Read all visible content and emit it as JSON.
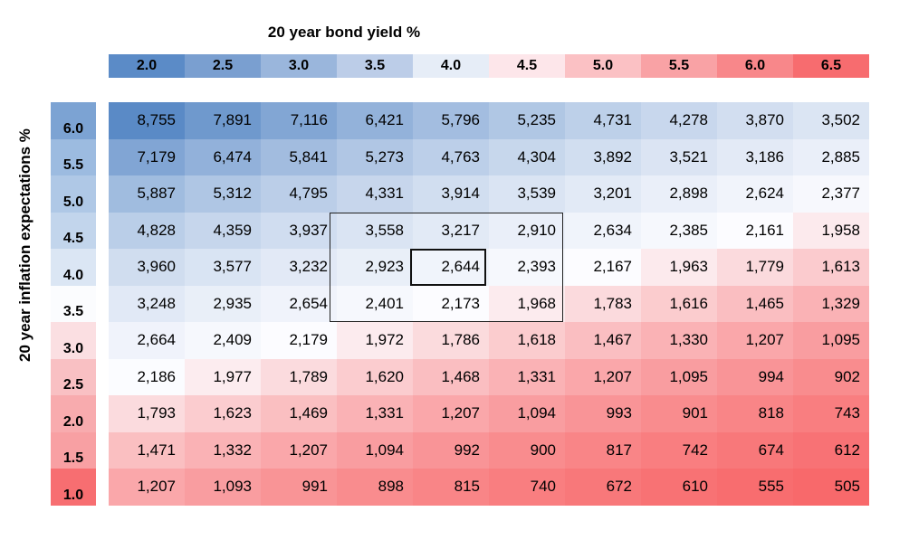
{
  "chart_data": {
    "type": "heatmap",
    "xlabel": "20 year bond yield %",
    "ylabel": "20 year inflation expectations %",
    "x": [
      "2.0",
      "2.5",
      "3.0",
      "3.5",
      "4.0",
      "4.5",
      "5.0",
      "5.5",
      "6.0",
      "6.5"
    ],
    "y": [
      "6.0",
      "5.5",
      "5.0",
      "4.5",
      "4.0",
      "3.5",
      "3.0",
      "2.5",
      "2.0",
      "1.5",
      "1.0"
    ],
    "values": [
      [
        "8,755",
        "7,891",
        "7,116",
        "6,421",
        "5,796",
        "5,235",
        "4,731",
        "4,278",
        "3,870",
        "3,502"
      ],
      [
        "7,179",
        "6,474",
        "5,841",
        "5,273",
        "4,763",
        "4,304",
        "3,892",
        "3,521",
        "3,186",
        "2,885"
      ],
      [
        "5,887",
        "5,312",
        "4,795",
        "4,331",
        "3,914",
        "3,539",
        "3,201",
        "2,898",
        "2,624",
        "2,377"
      ],
      [
        "4,828",
        "4,359",
        "3,937",
        "3,558",
        "3,217",
        "2,910",
        "2,634",
        "2,385",
        "2,161",
        "1,958"
      ],
      [
        "3,960",
        "3,577",
        "3,232",
        "2,923",
        "2,644",
        "2,393",
        "2,167",
        "1,963",
        "1,779",
        "1,613"
      ],
      [
        "3,248",
        "2,935",
        "2,654",
        "2,401",
        "2,173",
        "1,968",
        "1,783",
        "1,616",
        "1,465",
        "1,329"
      ],
      [
        "2,664",
        "2,409",
        "2,179",
        "1,972",
        "1,786",
        "1,618",
        "1,467",
        "1,330",
        "1,207",
        "1,095"
      ],
      [
        "2,186",
        "1,977",
        "1,789",
        "1,620",
        "1,468",
        "1,331",
        "1,207",
        "1,095",
        "994",
        "902"
      ],
      [
        "1,793",
        "1,623",
        "1,469",
        "1,331",
        "1,207",
        "1,094",
        "993",
        "901",
        "818",
        "743"
      ],
      [
        "1,471",
        "1,332",
        "1,207",
        "1,094",
        "992",
        "900",
        "817",
        "742",
        "674",
        "612"
      ],
      [
        "1,207",
        "1,093",
        "991",
        "898",
        "815",
        "740",
        "672",
        "610",
        "555",
        "505"
      ]
    ],
    "highlight_outer": {
      "x": [
        "3.5",
        "4.0",
        "4.5"
      ],
      "y": [
        "4.5",
        "4.0",
        "3.5"
      ]
    },
    "highlight_inner": {
      "x": "4.0",
      "y": "4.0"
    },
    "colors": {
      "low": "#f8696b",
      "mid": "#fcfcff",
      "high": "#5a8ac6"
    },
    "header_colors": [
      "#5b8bc7",
      "#7a9fd0",
      "#9ab6dc",
      "#bccde8",
      "#e6edf7",
      "#fde6ea",
      "#fbc1c4",
      "#f9a2a5",
      "#f8878a",
      "#f76c6f"
    ],
    "row_header_colors": [
      "#7ca3d3",
      "#9cbbe0",
      "#afc8e6",
      "#c2d5ec",
      "#dbe6f4",
      "#fbfcfe",
      "#fbdfe2",
      "#f9c0c3",
      "#f8abae",
      "#f8a0a3",
      "#f76e71"
    ]
  }
}
